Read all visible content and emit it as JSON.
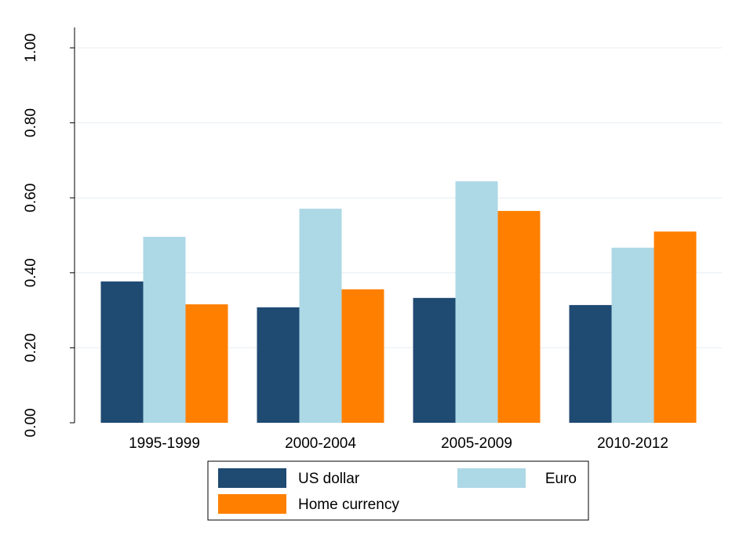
{
  "chart_data": {
    "type": "bar",
    "categories": [
      "1995-1999",
      "2000-2004",
      "2005-2009",
      "2010-2012"
    ],
    "series": [
      {
        "name": "US dollar",
        "color": "#1f4a72",
        "values": [
          0.377,
          0.308,
          0.333,
          0.314
        ]
      },
      {
        "name": "Euro",
        "color": "#add8e6",
        "values": [
          0.496,
          0.571,
          0.644,
          0.467
        ]
      },
      {
        "name": "Home currency",
        "color": "#ff8000",
        "values": [
          0.316,
          0.356,
          0.565,
          0.51
        ]
      }
    ],
    "ylim": [
      0,
      1.0
    ],
    "yticks": [
      {
        "value": 0,
        "label": "0.00"
      },
      {
        "value": 0.2,
        "label": "0.20"
      },
      {
        "value": 0.4,
        "label": "0.40"
      },
      {
        "value": 0.6,
        "label": "0.60"
      },
      {
        "value": 0.8,
        "label": "0.80"
      },
      {
        "value": 1.0,
        "label": "1.00"
      }
    ],
    "grid": true
  }
}
